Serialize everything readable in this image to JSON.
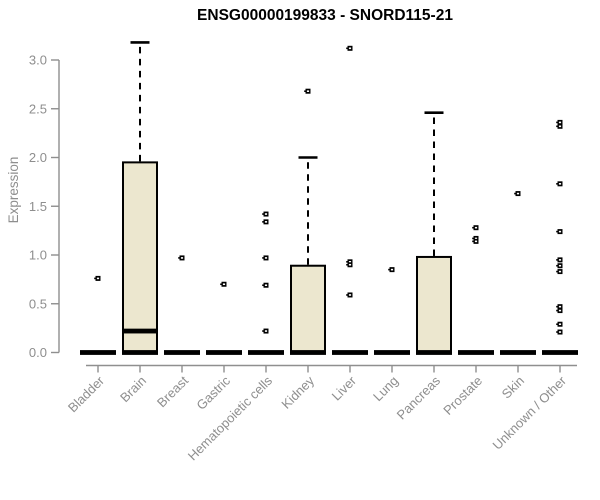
{
  "chart_data": {
    "type": "boxplot",
    "title": "ENSG00000199833 - SNORD115-21",
    "ylabel": "Expression",
    "xlabel": "",
    "ylim": [
      0,
      3.2
    ],
    "ytick_labels": [
      "0.0",
      "0.5",
      "1.0",
      "1.5",
      "2.0",
      "2.5",
      "3.0"
    ],
    "grid": false,
    "legend": null,
    "categories": [
      "Bladder",
      "Brain",
      "Breast",
      "Gastric",
      "Hematopoietic cells",
      "Kidney",
      "Liver",
      "Lung",
      "Pancreas",
      "Prostate",
      "Skin",
      "Unknown / Other"
    ],
    "boxes": [
      {
        "category": "Bladder",
        "whisker_low": 0,
        "q1": 0,
        "median": 0,
        "q3": 0,
        "whisker_high": 0,
        "outliers": [
          0.76
        ]
      },
      {
        "category": "Brain",
        "whisker_low": 0,
        "q1": 0,
        "median": 0.22,
        "q3": 1.95,
        "whisker_high": 3.18,
        "outliers": []
      },
      {
        "category": "Breast",
        "whisker_low": 0,
        "q1": 0,
        "median": 0,
        "q3": 0,
        "whisker_high": 0,
        "outliers": [
          0.97
        ]
      },
      {
        "category": "Gastric",
        "whisker_low": 0,
        "q1": 0,
        "median": 0,
        "q3": 0,
        "whisker_high": 0,
        "outliers": [
          0.7
        ]
      },
      {
        "category": "Hematopoietic cells",
        "whisker_low": 0,
        "q1": 0,
        "median": 0,
        "q3": 0,
        "whisker_high": 0,
        "outliers": [
          1.42,
          1.34,
          0.97,
          0.69,
          0.22
        ]
      },
      {
        "category": "Kidney",
        "whisker_low": 0,
        "q1": 0,
        "median": 0,
        "q3": 0.89,
        "whisker_high": 2.0,
        "outliers": [
          2.68
        ]
      },
      {
        "category": "Liver",
        "whisker_low": 0,
        "q1": 0,
        "median": 0,
        "q3": 0,
        "whisker_high": 0,
        "outliers": [
          3.12,
          0.93,
          0.9,
          0.59
        ]
      },
      {
        "category": "Lung",
        "whisker_low": 0,
        "q1": 0,
        "median": 0,
        "q3": 0,
        "whisker_high": 0,
        "outliers": [
          0.85
        ]
      },
      {
        "category": "Pancreas",
        "whisker_low": 0,
        "q1": 0,
        "median": 0,
        "q3": 0.98,
        "whisker_high": 2.46,
        "outliers": []
      },
      {
        "category": "Prostate",
        "whisker_low": 0,
        "q1": 0,
        "median": 0,
        "q3": 0,
        "whisker_high": 0,
        "outliers": [
          1.28,
          1.17,
          1.14
        ]
      },
      {
        "category": "Skin",
        "whisker_low": 0,
        "q1": 0,
        "median": 0,
        "q3": 0,
        "whisker_high": 0,
        "outliers": [
          1.63
        ]
      },
      {
        "category": "Unknown / Other",
        "whisker_low": 0,
        "q1": 0,
        "median": 0,
        "q3": 0,
        "whisker_high": 0,
        "outliers": [
          2.36,
          2.32,
          1.73,
          1.24,
          0.95,
          0.89,
          0.83,
          0.47,
          0.43,
          0.29,
          0.21
        ]
      }
    ],
    "colors": {
      "background": "#ffffff",
      "box_fill": "#ece7cf",
      "box_border": "#000000",
      "median": "#000000",
      "whisker": "#000000",
      "outlier": "#000000",
      "axis": "#8f8f8f",
      "tick_text": "#8e8e8e",
      "title_text": "#000000"
    }
  }
}
